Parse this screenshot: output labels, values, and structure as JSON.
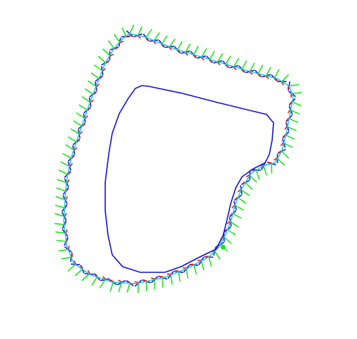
{
  "colors": {
    "background": "#ffffff",
    "inner_loop": "#1010d8",
    "outer_loop": "#22c8dc",
    "frame_red": "#e81818",
    "frame_green": "#18e818",
    "frame_blue": "#1818e0",
    "marker": "#18e818"
  }
}
